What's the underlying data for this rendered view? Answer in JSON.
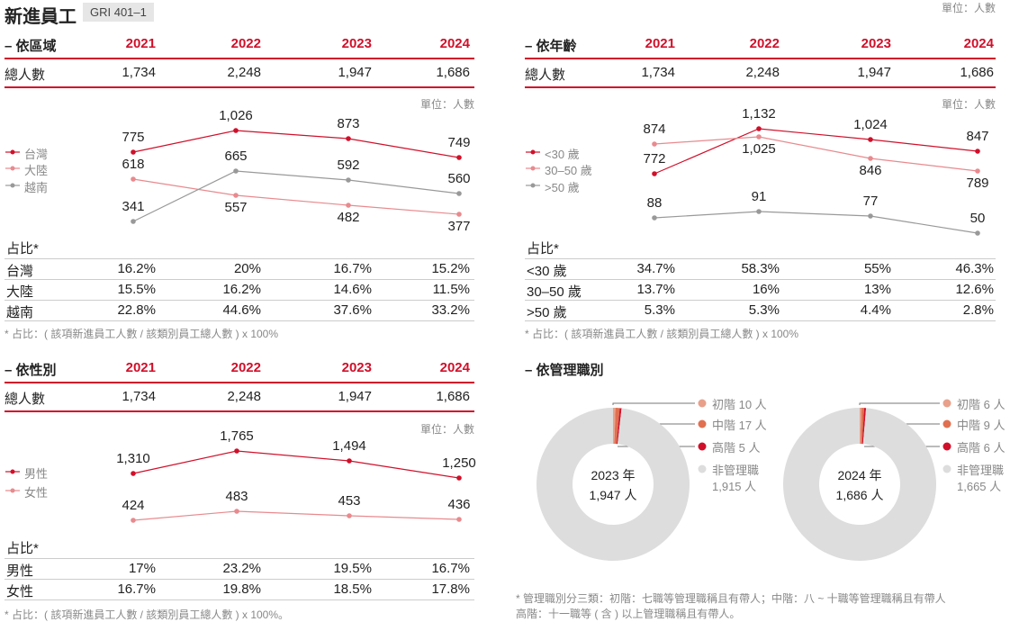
{
  "page": {
    "title": "新進員工",
    "gri": "GRI 401–1",
    "unit": "單位：人數"
  },
  "colors": {
    "red": "#d0102a",
    "pink": "#e88a8e",
    "gray": "#999999",
    "junior": "#e8a08a",
    "middle": "#e07050",
    "senior": "#d0102a",
    "nonmgmt": "#dddddd"
  },
  "years": [
    "2021",
    "2022",
    "2023",
    "2024"
  ],
  "sections": [
    {
      "heading": "– 依區域",
      "total_label": "總人數",
      "totals": [
        "1,734",
        "2,248",
        "1,947",
        "1,686"
      ],
      "unit": "單位：人數",
      "ratio_title": "占比*",
      "footnote": "* 占比：( 該項新進員工人數 / 該類別員工總人數 ) x 100%",
      "ratios": [
        {
          "label": "台灣",
          "values": [
            "16.2%",
            "20%",
            "16.7%",
            "15.2%"
          ]
        },
        {
          "label": "大陸",
          "values": [
            "15.5%",
            "16.2%",
            "14.6%",
            "11.5%"
          ]
        },
        {
          "label": "越南",
          "values": [
            "22.8%",
            "44.6%",
            "37.6%",
            "33.2%"
          ]
        }
      ]
    },
    {
      "heading": "– 依年齡",
      "total_label": "總人數",
      "totals": [
        "1,734",
        "2,248",
        "1,947",
        "1,686"
      ],
      "unit": "單位：人數",
      "ratio_title": "占比*",
      "footnote": "* 占比：( 該項新進員工人數 / 該類別員工總人數 ) x 100%",
      "ratios": [
        {
          "label": "<30 歲",
          "values": [
            "34.7%",
            "58.3%",
            "55%",
            "46.3%"
          ]
        },
        {
          "label": "30–50 歲",
          "values": [
            "13.7%",
            "16%",
            "13%",
            "12.6%"
          ]
        },
        {
          "label": ">50 歲",
          "values": [
            "5.3%",
            "5.3%",
            "4.4%",
            "2.8%"
          ]
        }
      ]
    },
    {
      "heading": "– 依性別",
      "total_label": "總人數",
      "totals": [
        "1,734",
        "2,248",
        "1,947",
        "1,686"
      ],
      "unit": "單位：人數",
      "ratio_title": "占比*",
      "footnote": "* 占比：( 該項新進員工人數 / 該類別員工總人數 ) x 100%。",
      "ratios": [
        {
          "label": "男性",
          "values": [
            "17%",
            "23.2%",
            "19.5%",
            "16.7%"
          ]
        },
        {
          "label": "女性",
          "values": [
            "16.7%",
            "19.8%",
            "18.5%",
            "17.8%"
          ]
        }
      ]
    }
  ],
  "chart_data": [
    {
      "type": "line",
      "title": "依區域",
      "categories": [
        "2021",
        "2022",
        "2023",
        "2024"
      ],
      "series": [
        {
          "name": "台灣",
          "color": "#d0102a",
          "values": [
            775,
            1026,
            873,
            749
          ],
          "labels": [
            "775",
            "1,026",
            "873",
            "749"
          ]
        },
        {
          "name": "大陸",
          "color": "#e88a8e",
          "values": [
            618,
            557,
            482,
            377
          ],
          "labels": [
            "618",
            "557",
            "482",
            "377"
          ]
        },
        {
          "name": "越南",
          "color": "#999999",
          "values": [
            341,
            665,
            592,
            560
          ],
          "labels": [
            "341",
            "665",
            "592",
            "560"
          ]
        }
      ]
    },
    {
      "type": "line",
      "title": "依年齡",
      "categories": [
        "2021",
        "2022",
        "2023",
        "2024"
      ],
      "series": [
        {
          "name": "<30 歲",
          "color": "#d0102a",
          "values": [
            772,
            1132,
            1024,
            847
          ],
          "labels": [
            "772",
            "1,132",
            "1,024",
            "847"
          ]
        },
        {
          "name": "30–50 歲",
          "color": "#e88a8e",
          "values": [
            874,
            1025,
            846,
            789
          ],
          "labels": [
            "874",
            "1,025",
            "846",
            "789"
          ]
        },
        {
          "name": ">50 歲",
          "color": "#999999",
          "values": [
            88,
            91,
            77,
            50
          ],
          "labels": [
            "88",
            "91",
            "77",
            "50"
          ]
        }
      ]
    },
    {
      "type": "line",
      "title": "依性別",
      "categories": [
        "2021",
        "2022",
        "2023",
        "2024"
      ],
      "series": [
        {
          "name": "男性",
          "color": "#d0102a",
          "values": [
            1310,
            1765,
            1494,
            1250
          ],
          "labels": [
            "1,310",
            "1,765",
            "1,494",
            "1,250"
          ]
        },
        {
          "name": "女性",
          "color": "#e88a8e",
          "values": [
            424,
            483,
            453,
            436
          ],
          "labels": [
            "424",
            "483",
            "453",
            "436"
          ]
        }
      ]
    },
    {
      "type": "pie",
      "title": "依管理職別",
      "pies": [
        {
          "center_year": "2023 年",
          "center_total": "1,947 人",
          "slices": [
            {
              "name": "初階",
              "value": 10,
              "label": "初階 10 人",
              "color": "#e8a08a"
            },
            {
              "name": "中階",
              "value": 17,
              "label": "中階 17 人",
              "color": "#e07050"
            },
            {
              "name": "高階",
              "value": 5,
              "label": "高階 5 人",
              "color": "#d0102a"
            },
            {
              "name": "非管理職",
              "value": 1915,
              "label": "非管理職",
              "sub": "1,915 人",
              "color": "#dddddd"
            }
          ]
        },
        {
          "center_year": "2024 年",
          "center_total": "1,686 人",
          "slices": [
            {
              "name": "初階",
              "value": 6,
              "label": "初階 6 人",
              "color": "#e8a08a"
            },
            {
              "name": "中階",
              "value": 9,
              "label": "中階 9 人",
              "color": "#e07050"
            },
            {
              "name": "高階",
              "value": 6,
              "label": "高階 6 人",
              "color": "#d0102a"
            },
            {
              "name": "非管理職",
              "value": 1665,
              "label": "非管理職",
              "sub": "1,665 人",
              "color": "#dddddd"
            }
          ]
        }
      ]
    }
  ],
  "mgmt": {
    "heading": "– 依管理職別",
    "footnote1": "* 管理職別分三類：初階：七職等管理職稱且有帶人；中階：八 ~ 十職等管理職稱且有帶人",
    "footnote2": "高階：十一職等 ( 含 ) 以上管理職稱且有帶人。"
  }
}
